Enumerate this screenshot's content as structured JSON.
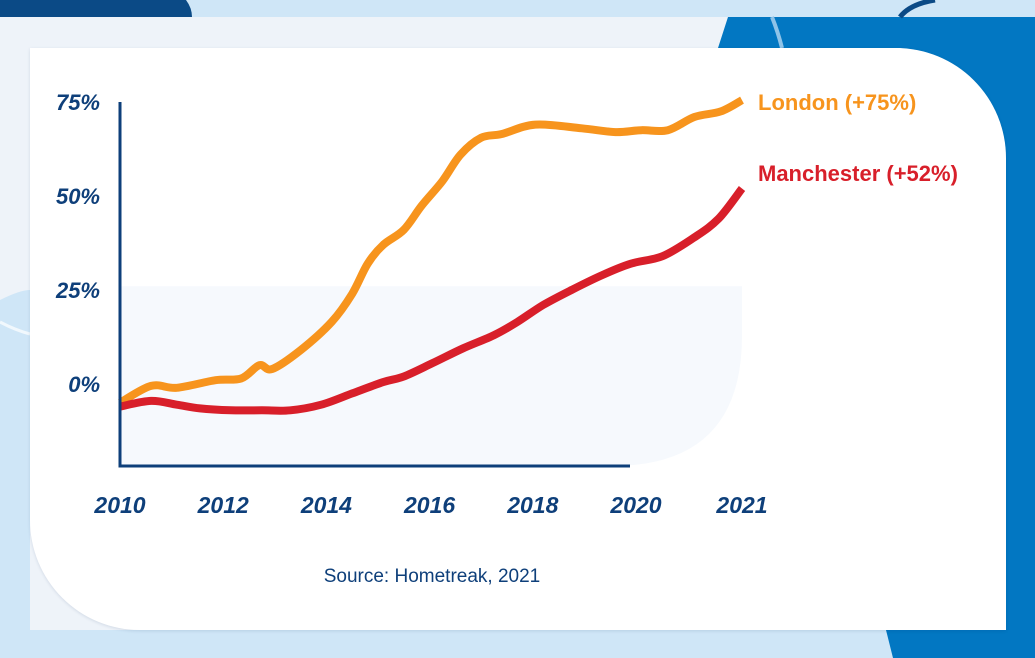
{
  "chart_data": {
    "type": "line",
    "title": "",
    "xlabel": "",
    "ylabel": "",
    "x_tick_labels": [
      "2010",
      "2012",
      "2014",
      "2016",
      "2018",
      "2020",
      "2021"
    ],
    "y_tick_labels": [
      "75%",
      "50%",
      "25%",
      "0%"
    ],
    "y_ticks": [
      75,
      50,
      25,
      0
    ],
    "ylim": [
      -22,
      80
    ],
    "xlim": [
      2010,
      2021
    ],
    "grid": false,
    "legend_placement": "right, inline at line ends",
    "series": [
      {
        "name": "London",
        "label": "London (+75%)",
        "color": "#f7941d",
        "x": [
          2010.0,
          2010.6,
          2011.1,
          2011.85,
          2012.35,
          2012.7,
          2012.95,
          2013.5,
          2014.1,
          2014.5,
          2014.8,
          2015.1,
          2015.5,
          2015.85,
          2016.25,
          2016.6,
          2017.0,
          2017.4,
          2018.05,
          2018.95,
          2019.6,
          2020.05,
          2020.3,
          2020.55,
          2020.8,
          2021.0
        ],
        "values": [
          -5,
          -0.5,
          -1,
          1,
          1.5,
          5,
          4,
          9,
          16.5,
          24,
          32,
          37,
          41,
          47.5,
          54,
          61,
          65.5,
          66.5,
          69,
          68,
          67,
          67.5,
          67.5,
          71,
          72.5,
          75.5
        ]
      },
      {
        "name": "Manchester",
        "label": "Manchester (+52%)",
        "color": "#d81f2a",
        "x": [
          2010.0,
          2010.6,
          2011.1,
          2011.55,
          2012.15,
          2012.75,
          2013.3,
          2013.9,
          2014.5,
          2015.1,
          2015.5,
          2016.05,
          2016.65,
          2017.25,
          2017.7,
          2018.2,
          2018.75,
          2019.35,
          2019.9,
          2020.25,
          2020.55,
          2020.78,
          2021.0
        ],
        "values": [
          -6,
          -4.5,
          -5.5,
          -6.5,
          -7,
          -7,
          -7,
          -5.5,
          -2.5,
          0.5,
          2,
          5.5,
          9.5,
          13,
          16.5,
          21,
          25,
          29,
          32,
          34,
          39,
          44,
          52
        ]
      }
    ],
    "annotation": "Source: Hometreak, 2021"
  },
  "colors": {
    "axis": "#0e3f7a",
    "navy": "#0b4a86",
    "blue": "#0277c2",
    "light_blue": "#cfe6f7",
    "pale_bg": "#eef3f9",
    "shade": "#f6f9fd"
  }
}
